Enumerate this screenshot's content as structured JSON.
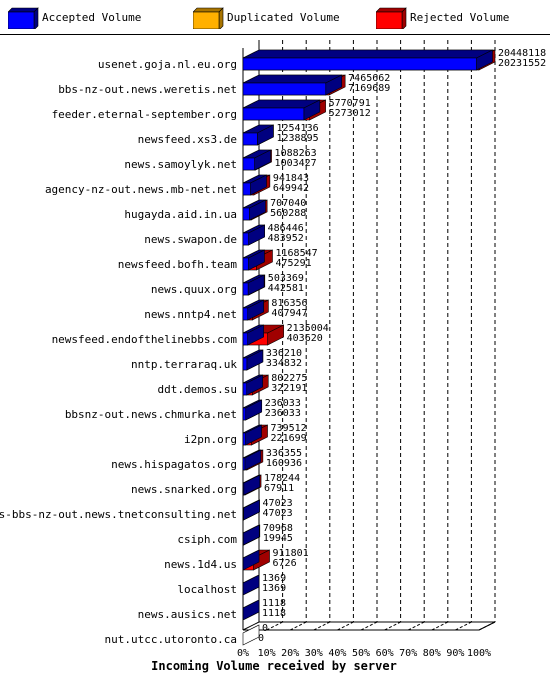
{
  "legend": [
    {
      "label": "Accepted Volume",
      "color": "#0000ff"
    },
    {
      "label": "Duplicated Volume",
      "color": "#ffb000"
    },
    {
      "label": "Rejected Volume",
      "color": "#ff0000"
    }
  ],
  "chart_data": {
    "type": "bar",
    "orientation": "horizontal",
    "stacked": true,
    "xlabel": "Incoming Volume received by server",
    "x_tick_labels": [
      "0%",
      "10%",
      "20%",
      "30%",
      "40%",
      "50%",
      "60%",
      "70%",
      "80%",
      "90%",
      "100%"
    ],
    "xlim": [
      0,
      100
    ],
    "grid": true,
    "legend_position": "top",
    "max_total": 20448118,
    "rows": [
      {
        "server": "usenet.goja.nl.eu.org",
        "total": 20448118,
        "accepted": 20231552
      },
      {
        "server": "bbs-nz-out.news.weretis.net",
        "total": 7465662,
        "accepted": 7169689
      },
      {
        "server": "feeder.eternal-september.org",
        "total": 5770791,
        "accepted": 5273012
      },
      {
        "server": "newsfeed.xs3.de",
        "total": 1254136,
        "accepted": 1238895
      },
      {
        "server": "news.samoylyk.net",
        "total": 1088263,
        "accepted": 1003427
      },
      {
        "server": "agency-nz-out.news.mb-net.net",
        "total": 941843,
        "accepted": 649942
      },
      {
        "server": "hugayda.aid.in.ua",
        "total": 707040,
        "accepted": 560288
      },
      {
        "server": "news.swapon.de",
        "total": 486446,
        "accepted": 483952
      },
      {
        "server": "newsfeed.bofh.team",
        "total": 1168547,
        "accepted": 475291
      },
      {
        "server": "news.quux.org",
        "total": 503369,
        "accepted": 442581
      },
      {
        "server": "news.nntp4.net",
        "total": 816356,
        "accepted": 407947
      },
      {
        "server": "newsfeed.endofthelinebbs.com",
        "total": 2135004,
        "accepted": 403620
      },
      {
        "server": "nntp.terraraq.uk",
        "total": 336210,
        "accepted": 334832
      },
      {
        "server": "ddt.demos.su",
        "total": 802275,
        "accepted": 322191
      },
      {
        "server": "bbsnz-out.news.chmurka.net",
        "total": 236033,
        "accepted": 236033
      },
      {
        "server": "i2pn.org",
        "total": 739512,
        "accepted": 221699
      },
      {
        "server": "news.hispagatos.org",
        "total": 336355,
        "accepted": 160936
      },
      {
        "server": "news.snarked.org",
        "total": 178244,
        "accepted": 67911
      },
      {
        "server": "news-bbs-nz-out.news.tnetconsulting.net",
        "total": 47023,
        "accepted": 47023
      },
      {
        "server": "csiph.com",
        "total": 70968,
        "accepted": 19945
      },
      {
        "server": "news.1d4.us",
        "total": 911801,
        "accepted": 6726
      },
      {
        "server": "localhost",
        "total": 1369,
        "accepted": 1369
      },
      {
        "server": "news.ausics.net",
        "total": 1118,
        "accepted": 1118
      },
      {
        "server": "nut.utcc.utoronto.ca",
        "total": 0,
        "accepted": 0
      }
    ]
  }
}
